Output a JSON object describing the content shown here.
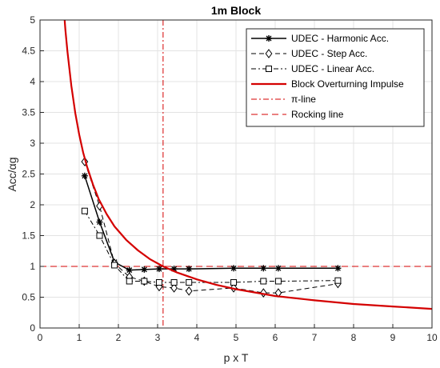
{
  "chart_data": {
    "type": "line",
    "title": "1m Block",
    "xlabel": "p x T",
    "ylabel": "Acc/αg",
    "xlim": [
      0,
      10
    ],
    "ylim": [
      0,
      5
    ],
    "x_ticks": [
      "0",
      "1",
      "2",
      "3",
      "4",
      "5",
      "6",
      "7",
      "8",
      "9",
      "10"
    ],
    "y_ticks": [
      "0",
      "0.5",
      "1",
      "1.5",
      "2",
      "2.5",
      "3",
      "3.5",
      "4",
      "4.5",
      "5"
    ],
    "grid": true,
    "legend_position": "top-right",
    "series": [
      {
        "name": "UDEC - Harmonic Acc.",
        "style": "solid-star",
        "color": "#000000",
        "x": [
          1.14,
          1.52,
          1.9,
          2.28,
          2.66,
          3.04,
          3.42,
          3.8,
          4.94,
          5.7,
          6.08,
          7.6
        ],
        "y": [
          2.47,
          1.72,
          1.07,
          0.94,
          0.95,
          0.96,
          0.96,
          0.96,
          0.97,
          0.97,
          0.97,
          0.97
        ]
      },
      {
        "name": "UDEC - Step Acc.",
        "style": "dashed-diamond",
        "color": "#000000",
        "x": [
          1.14,
          1.52,
          1.9,
          2.28,
          2.66,
          3.04,
          3.42,
          3.8,
          4.94,
          5.7,
          6.08,
          7.6
        ],
        "y": [
          2.7,
          1.98,
          1.05,
          0.83,
          0.76,
          0.67,
          0.65,
          0.6,
          0.65,
          0.57,
          0.57,
          0.72
        ]
      },
      {
        "name": "UDEC - Linear Acc.",
        "style": "dashdot-square",
        "color": "#000000",
        "x": [
          1.14,
          1.52,
          1.9,
          2.28,
          2.66,
          3.04,
          3.42,
          3.8,
          4.94,
          5.7,
          6.08,
          7.6
        ],
        "y": [
          1.9,
          1.5,
          1.02,
          0.76,
          0.76,
          0.74,
          0.74,
          0.74,
          0.74,
          0.76,
          0.76,
          0.77
        ]
      },
      {
        "name": "Block Overturning Impulse",
        "style": "solid-thick",
        "color": "#d40000",
        "x": [
          0.6,
          0.65,
          0.7,
          0.8,
          0.9,
          1.0,
          1.1,
          1.2,
          1.35,
          1.5,
          1.7,
          1.9,
          2.2,
          2.5,
          2.8,
          3.14,
          3.5,
          4.0,
          4.5,
          5.0,
          6.0,
          7.0,
          8.0,
          9.0,
          10.0
        ],
        "y": [
          5.24,
          4.83,
          4.49,
          3.93,
          3.49,
          3.14,
          2.85,
          2.62,
          2.33,
          2.09,
          1.85,
          1.65,
          1.43,
          1.26,
          1.12,
          1.0,
          0.9,
          0.79,
          0.7,
          0.63,
          0.52,
          0.45,
          0.39,
          0.35,
          0.31
        ]
      }
    ],
    "reference_lines": [
      {
        "name": "π-line",
        "orientation": "vertical",
        "value": 3.14,
        "style": "dashdot",
        "color": "#d40000"
      },
      {
        "name": "Rocking line",
        "orientation": "horizontal",
        "value": 1.0,
        "style": "dashed",
        "color": "#d40000"
      }
    ]
  }
}
